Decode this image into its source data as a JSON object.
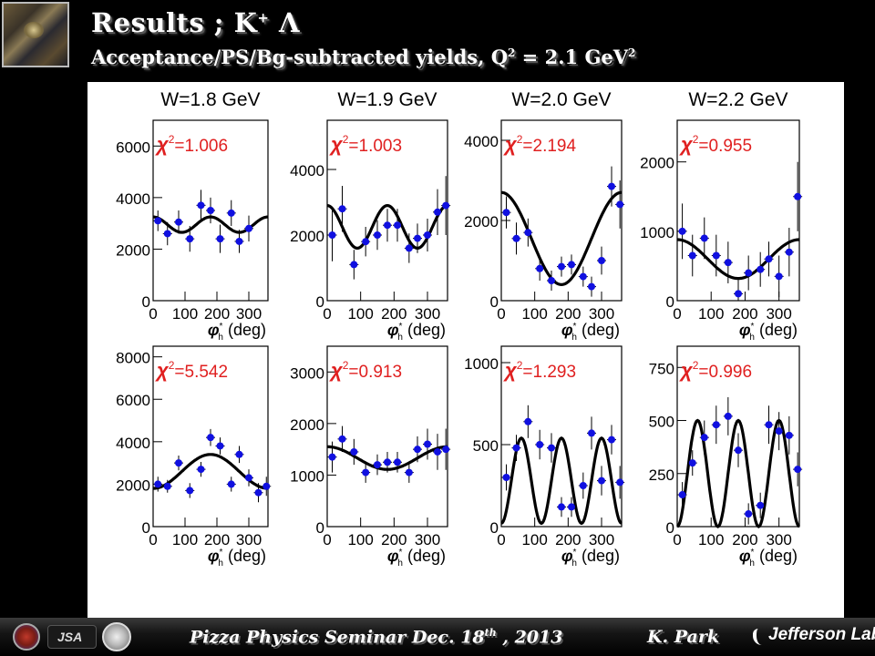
{
  "header": {
    "title_main": "Results ; K",
    "title_sup": "+",
    "title_tail": " Λ",
    "subtitle_main": "Acceptance/PS/Bg-subtracted yields,    Q",
    "subtitle_sup": "2",
    "subtitle_mid": " = 2.1 GeV",
    "subtitle_sup2": "2"
  },
  "footer": {
    "text_main": "Pizza Physics  Seminar  Dec. 18",
    "text_sup": "th",
    "text_tail": " , 2013",
    "author": "K. Park",
    "lab_name": "Jefferson Lab",
    "logo_jsa": "JSA"
  },
  "colors": {
    "points": "#1010e0",
    "chi2": "#e02020",
    "fit": "#000000",
    "background": "#000000",
    "panel": "#ffffff"
  },
  "chart_data": [
    {
      "type": "scatter",
      "panel_title": "W=1.8 GeV",
      "chi2_label": "χ²=1.006",
      "xlabel": "φ*h (deg)",
      "xticks": [
        0,
        100,
        200,
        300
      ],
      "xlim": [
        0,
        360
      ],
      "ylim": [
        0,
        7000
      ],
      "yticks": [
        0,
        2000,
        4000,
        6000
      ],
      "x": [
        15,
        45,
        80,
        115,
        150,
        180,
        210,
        245,
        270,
        300
      ],
      "y": [
        3100,
        2600,
        3050,
        2400,
        3700,
        3500,
        2400,
        3400,
        2300,
        2800
      ],
      "yerr": [
        400,
        450,
        450,
        500,
        600,
        500,
        550,
        500,
        450,
        500
      ],
      "fit": {
        "a0": 2950,
        "a1": 0,
        "a2": 300,
        "phase2": 0
      }
    },
    {
      "type": "scatter",
      "panel_title": "W=1.9 GeV",
      "chi2_label": "χ²=1.003",
      "xlabel": "φ*h (deg)",
      "xticks": [
        0,
        100,
        200,
        300
      ],
      "xlim": [
        0,
        360
      ],
      "ylim": [
        0,
        5500
      ],
      "yticks": [
        0,
        2000,
        4000
      ],
      "x": [
        15,
        45,
        80,
        115,
        150,
        180,
        210,
        245,
        270,
        300,
        330,
        355
      ],
      "y": [
        2000,
        2800,
        1100,
        1800,
        2000,
        2300,
        2300,
        1600,
        1900,
        2000,
        2700,
        2900
      ],
      "yerr": [
        800,
        700,
        450,
        450,
        450,
        500,
        500,
        450,
        450,
        500,
        700,
        900
      ],
      "fit": {
        "a0": 2250,
        "a1": 0,
        "a2": 650,
        "phase2": 0
      }
    },
    {
      "type": "scatter",
      "panel_title": "W=2.0 GeV",
      "chi2_label": "χ²=2.194",
      "xlabel": "φ*h (deg)",
      "xticks": [
        0,
        100,
        200,
        300
      ],
      "xlim": [
        0,
        360
      ],
      "ylim": [
        0,
        4500
      ],
      "yticks": [
        0,
        2000,
        4000
      ],
      "x": [
        15,
        45,
        80,
        115,
        150,
        180,
        210,
        245,
        270,
        300,
        330,
        355
      ],
      "y": [
        2200,
        1550,
        1700,
        800,
        500,
        850,
        900,
        600,
        350,
        1000,
        2850,
        2400
      ],
      "yerr": [
        400,
        400,
        350,
        300,
        250,
        250,
        250,
        250,
        250,
        350,
        500,
        600
      ],
      "fit": {
        "a0": 1550,
        "a1": 1150,
        "a2": 0,
        "phase2": 0
      }
    },
    {
      "type": "scatter",
      "panel_title": "W=2.2 GeV",
      "chi2_label": "χ²=0.955",
      "xlabel": "φ*h (deg)",
      "xticks": [
        0,
        100,
        200,
        300
      ],
      "xlim": [
        0,
        360
      ],
      "ylim": [
        0,
        2600
      ],
      "yticks": [
        0,
        1000,
        2000
      ],
      "x": [
        15,
        45,
        80,
        115,
        150,
        180,
        210,
        245,
        270,
        300,
        330,
        355
      ],
      "y": [
        1000,
        650,
        900,
        650,
        550,
        100,
        400,
        450,
        600,
        350,
        700,
        1500
      ],
      "yerr": [
        400,
        300,
        300,
        300,
        300,
        200,
        250,
        250,
        250,
        300,
        350,
        500
      ],
      "fit": {
        "a0": 600,
        "a1": 280,
        "a2": 0,
        "phase2": 0
      }
    },
    {
      "type": "scatter",
      "panel_title": "",
      "chi2_label": "χ²=5.542",
      "xlabel": "φ*h (deg)",
      "xticks": [
        0,
        100,
        200,
        300
      ],
      "xlim": [
        0,
        360
      ],
      "ylim": [
        0,
        8500
      ],
      "yticks": [
        0,
        2000,
        4000,
        6000,
        8000
      ],
      "x": [
        15,
        45,
        80,
        115,
        150,
        180,
        210,
        245,
        270,
        300,
        330,
        355
      ],
      "y": [
        2000,
        1900,
        3000,
        1700,
        2700,
        4200,
        3800,
        2000,
        3400,
        2300,
        1600,
        1900
      ],
      "yerr": [
        350,
        300,
        350,
        350,
        350,
        400,
        400,
        350,
        400,
        400,
        450,
        450
      ],
      "fit": {
        "a0": 2600,
        "a1": -800,
        "a2": 0,
        "phase2": 0
      }
    },
    {
      "type": "scatter",
      "panel_title": "",
      "chi2_label": "χ²=0.913",
      "xlabel": "φ*h (deg)",
      "xticks": [
        0,
        100,
        200,
        300
      ],
      "xlim": [
        0,
        360
      ],
      "ylim": [
        0,
        3500
      ],
      "yticks": [
        0,
        1000,
        2000,
        3000
      ],
      "x": [
        15,
        45,
        80,
        115,
        150,
        180,
        210,
        245,
        270,
        300,
        330,
        355
      ],
      "y": [
        1350,
        1700,
        1450,
        1050,
        1200,
        1250,
        1250,
        1050,
        1500,
        1600,
        1450,
        1500
      ],
      "yerr": [
        300,
        250,
        250,
        200,
        200,
        200,
        200,
        200,
        250,
        300,
        350,
        400
      ],
      "fit": {
        "a0": 1330,
        "a1": 220,
        "a2": 0,
        "phase2": 0
      }
    },
    {
      "type": "scatter",
      "panel_title": "",
      "chi2_label": "χ²=1.293",
      "xlabel": "φ*h (deg)",
      "xticks": [
        0,
        100,
        200,
        300
      ],
      "xlim": [
        0,
        360
      ],
      "ylim": [
        0,
        1100
      ],
      "yticks": [
        0,
        500,
        1000
      ],
      "x": [
        15,
        45,
        80,
        115,
        150,
        180,
        210,
        245,
        270,
        300,
        330,
        355
      ],
      "y": [
        300,
        480,
        640,
        500,
        480,
        120,
        120,
        250,
        570,
        280,
        530,
        270
      ],
      "yerr": [
        80,
        80,
        100,
        90,
        90,
        60,
        60,
        80,
        100,
        90,
        90,
        100
      ],
      "fit": {
        "a0": 280,
        "a1": 0,
        "a2": 0,
        "phase3": 0,
        "a3": -260
      }
    },
    {
      "type": "scatter",
      "panel_title": "",
      "chi2_label": "χ²=0.996",
      "xlabel": "φ*h (deg)",
      "xticks": [
        0,
        100,
        200,
        300
      ],
      "xlim": [
        0,
        360
      ],
      "ylim": [
        0,
        850
      ],
      "yticks": [
        0,
        250,
        500,
        750
      ],
      "x": [
        15,
        45,
        80,
        115,
        150,
        180,
        210,
        245,
        270,
        300,
        330,
        355
      ],
      "y": [
        150,
        300,
        420,
        480,
        520,
        360,
        60,
        100,
        480,
        450,
        430,
        270
      ],
      "yerr": [
        60,
        60,
        80,
        90,
        90,
        80,
        50,
        60,
        90,
        90,
        90,
        80
      ],
      "fit": {
        "a0": 250,
        "a1": 0,
        "a2": 0,
        "phase3": 0,
        "a3": -250
      }
    }
  ]
}
